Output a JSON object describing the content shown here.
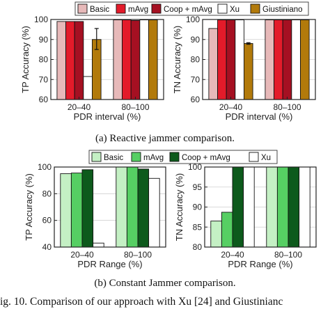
{
  "legend_top": [
    {
      "name": "Basic",
      "color": "#e7b9b9"
    },
    {
      "name": "mAvg",
      "color": "#e31b2a"
    },
    {
      "name": "Coop + mAvg",
      "color": "#a51022"
    },
    {
      "name": "Xu",
      "color": "#ffffff"
    },
    {
      "name": "Giustiniano",
      "color": "#b27a0b"
    }
  ],
  "legend_bottom": [
    {
      "name": "Basic",
      "color": "#c4f0c4"
    },
    {
      "name": "mAvg",
      "color": "#56cf63"
    },
    {
      "name": "Coop + mAvg",
      "color": "#0d5a1c"
    },
    {
      "name": "Xu",
      "color": "#ffffff"
    }
  ],
  "captions": {
    "a": "(a)  Reactive jammer comparison.",
    "b": "(b)  Constant Jammer comparison.",
    "figure": "ig. 10.  Comparison of our approach with Xu [24] and Giustinianc"
  },
  "chart_data": [
    {
      "type": "bar",
      "id": "a-tp",
      "categories": [
        "20–40",
        "80–100"
      ],
      "xlabel": "PDR interval (%)",
      "ylabel": "TP Accuracy (%)",
      "ylim": [
        60,
        100
      ],
      "yticks": [
        60,
        70,
        80,
        90,
        100
      ],
      "grid": true,
      "series": [
        {
          "name": "Basic",
          "values": [
            99,
            99.8
          ]
        },
        {
          "name": "mAvg",
          "values": [
            99,
            99.8
          ]
        },
        {
          "name": "Coop + mAvg",
          "values": [
            99,
            99.5
          ]
        },
        {
          "name": "Xu",
          "values": [
            71.5,
            99.8
          ]
        },
        {
          "name": "Giustiniano",
          "values": [
            90,
            99.8
          ]
        }
      ],
      "error": {
        "series": 4,
        "category": 0,
        "low": 85,
        "high": 95.5
      }
    },
    {
      "type": "bar",
      "id": "a-tn",
      "categories": [
        "20–40",
        "80–100"
      ],
      "xlabel": "PDR interval (%)",
      "ylabel": "TN Accuracy (%)",
      "ylim": [
        60,
        100
      ],
      "yticks": [
        60,
        70,
        80,
        90,
        100
      ],
      "grid": true,
      "series": [
        {
          "name": "Basic",
          "values": [
            95.5,
            99.8
          ]
        },
        {
          "name": "mAvg",
          "values": [
            99.8,
            99.8
          ]
        },
        {
          "name": "Coop + mAvg",
          "values": [
            99.8,
            99.8
          ]
        },
        {
          "name": "Xu",
          "values": [
            99.8,
            99.8
          ]
        },
        {
          "name": "Giustiniano",
          "values": [
            88,
            99.8
          ]
        }
      ],
      "error": {
        "series": 4,
        "category": 0,
        "low": 87.6,
        "high": 88.4
      }
    },
    {
      "type": "bar",
      "id": "b-tp",
      "categories": [
        "20–40",
        "80–100"
      ],
      "xlabel": "PDR Range (%)",
      "ylabel": "TP Accuracy (%)",
      "ylim": [
        40,
        100
      ],
      "yticks": [
        40,
        60,
        80,
        100
      ],
      "grid": true,
      "series": [
        {
          "name": "Basic",
          "values": [
            95,
            100
          ]
        },
        {
          "name": "mAvg",
          "values": [
            95.5,
            100
          ]
        },
        {
          "name": "Coop + mAvg",
          "values": [
            98,
            98.5
          ]
        },
        {
          "name": "Xu",
          "values": [
            43,
            91.5
          ]
        }
      ]
    },
    {
      "type": "bar",
      "id": "b-tn",
      "categories": [
        "20–40",
        "80–100"
      ],
      "xlabel": "PDR Range (%)",
      "ylabel": "TN Accuracy (%)",
      "ylim": [
        80,
        100
      ],
      "yticks": [
        80,
        85,
        90,
        95,
        100
      ],
      "grid": true,
      "series": [
        {
          "name": "Basic",
          "values": [
            86.5,
            100
          ]
        },
        {
          "name": "mAvg",
          "values": [
            88.7,
            100
          ]
        },
        {
          "name": "Coop + mAvg",
          "values": [
            100,
            100
          ]
        },
        {
          "name": "Xu",
          "values": [
            100,
            100
          ]
        }
      ]
    }
  ]
}
